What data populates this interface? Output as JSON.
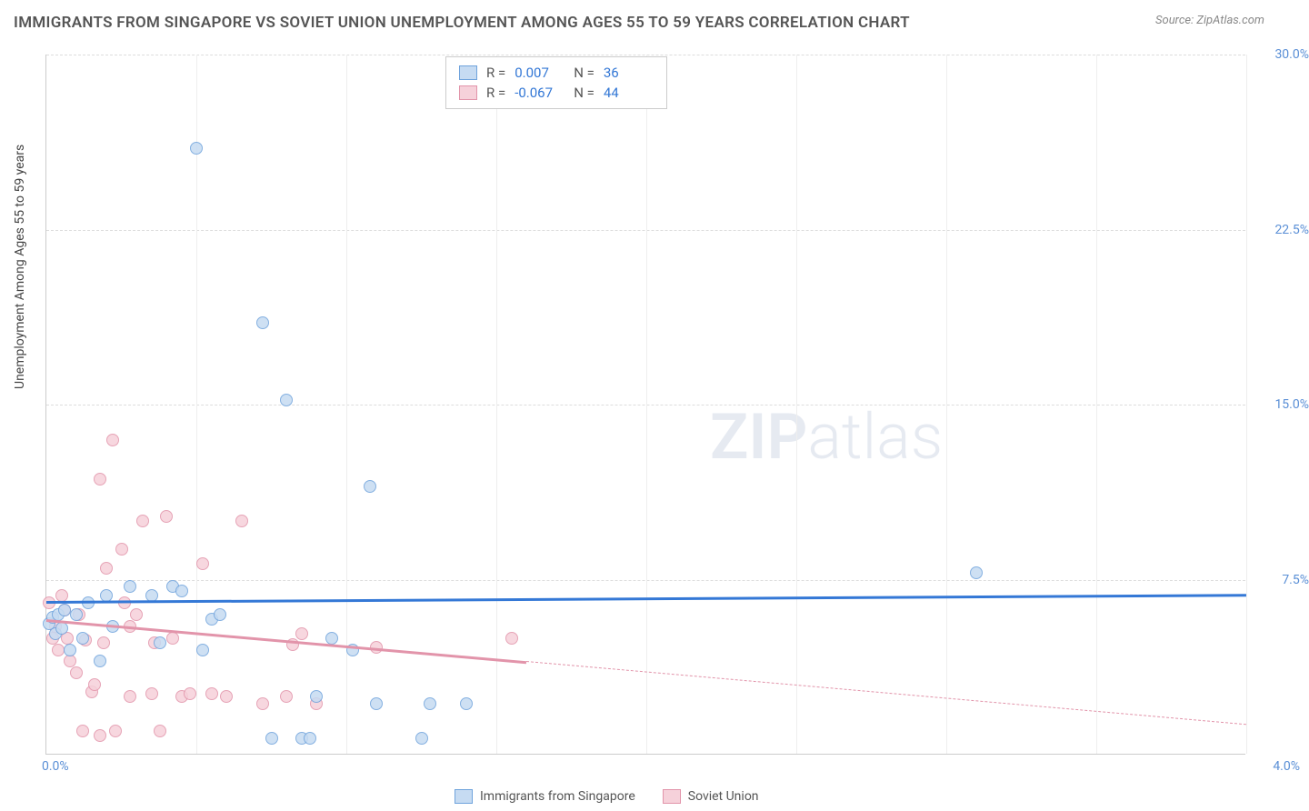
{
  "title": "IMMIGRANTS FROM SINGAPORE VS SOVIET UNION UNEMPLOYMENT AMONG AGES 55 TO 59 YEARS CORRELATION CHART",
  "source": "Source: ZipAtlas.com",
  "y_axis_label": "Unemployment Among Ages 55 to 59 years",
  "watermark_bold": "ZIP",
  "watermark_light": "atlas",
  "chart": {
    "type": "scatter",
    "x_range": [
      0.0,
      4.0
    ],
    "y_range": [
      0.0,
      30.0
    ],
    "y_ticks": [
      7.5,
      15.0,
      22.5,
      30.0
    ],
    "y_tick_labels": [
      "7.5%",
      "15.0%",
      "22.5%",
      "30.0%"
    ],
    "x_ticks": [
      0.0,
      4.0
    ],
    "x_tick_positions": [
      0.0,
      0.5,
      1.0,
      1.5,
      2.0,
      2.5,
      3.0,
      3.5,
      4.0
    ],
    "x_tick_labels": [
      "0.0%",
      "4.0%"
    ],
    "background_color": "#ffffff",
    "grid_color": "#dddddd",
    "marker_radius": 7,
    "series": [
      {
        "name": "Immigrants from Singapore",
        "fill": "#c6dbf2",
        "stroke": "#6fa3dc",
        "r_value": "0.007",
        "n_value": "36",
        "trend": {
          "color": "#3478d6",
          "y_start": 6.6,
          "y_end": 6.9,
          "x_start": 0.0,
          "x_end": 4.0,
          "solid_frac": 1.0
        },
        "points": [
          [
            0.01,
            5.6
          ],
          [
            0.02,
            5.9
          ],
          [
            0.03,
            5.2
          ],
          [
            0.04,
            6.0
          ],
          [
            0.05,
            5.4
          ],
          [
            0.06,
            6.2
          ],
          [
            0.08,
            4.5
          ],
          [
            0.1,
            6.0
          ],
          [
            0.12,
            5.0
          ],
          [
            0.14,
            6.5
          ],
          [
            0.18,
            4.0
          ],
          [
            0.2,
            6.8
          ],
          [
            0.22,
            5.5
          ],
          [
            0.28,
            7.2
          ],
          [
            0.35,
            6.8
          ],
          [
            0.38,
            4.8
          ],
          [
            0.42,
            7.2
          ],
          [
            0.45,
            7.0
          ],
          [
            0.5,
            26.0
          ],
          [
            0.52,
            4.5
          ],
          [
            0.55,
            5.8
          ],
          [
            0.58,
            6.0
          ],
          [
            0.72,
            18.5
          ],
          [
            0.75,
            0.7
          ],
          [
            0.8,
            15.2
          ],
          [
            0.85,
            0.7
          ],
          [
            0.88,
            0.7
          ],
          [
            0.9,
            2.5
          ],
          [
            0.95,
            5.0
          ],
          [
            1.02,
            4.5
          ],
          [
            1.08,
            11.5
          ],
          [
            1.1,
            2.2
          ],
          [
            1.25,
            0.7
          ],
          [
            1.28,
            2.2
          ],
          [
            1.4,
            2.2
          ],
          [
            3.1,
            7.8
          ]
        ]
      },
      {
        "name": "Soviet Union",
        "fill": "#f6d1da",
        "stroke": "#e294aa",
        "r_value": "-0.067",
        "n_value": "44",
        "trend": {
          "color": "#e294aa",
          "y_start": 5.8,
          "y_end": 1.3,
          "x_start": 0.0,
          "x_end": 4.0,
          "solid_frac": 0.4
        },
        "points": [
          [
            0.01,
            6.5
          ],
          [
            0.02,
            5.0
          ],
          [
            0.03,
            5.5
          ],
          [
            0.04,
            4.5
          ],
          [
            0.05,
            6.8
          ],
          [
            0.06,
            6.2
          ],
          [
            0.07,
            5.0
          ],
          [
            0.08,
            4.0
          ],
          [
            0.1,
            3.5
          ],
          [
            0.11,
            6.0
          ],
          [
            0.12,
            1.0
          ],
          [
            0.13,
            4.9
          ],
          [
            0.15,
            2.7
          ],
          [
            0.16,
            3.0
          ],
          [
            0.18,
            0.8
          ],
          [
            0.18,
            11.8
          ],
          [
            0.19,
            4.8
          ],
          [
            0.2,
            8.0
          ],
          [
            0.22,
            13.5
          ],
          [
            0.23,
            1.0
          ],
          [
            0.25,
            8.8
          ],
          [
            0.26,
            6.5
          ],
          [
            0.28,
            2.5
          ],
          [
            0.28,
            5.5
          ],
          [
            0.3,
            6.0
          ],
          [
            0.32,
            10.0
          ],
          [
            0.35,
            2.6
          ],
          [
            0.36,
            4.8
          ],
          [
            0.38,
            1.0
          ],
          [
            0.4,
            10.2
          ],
          [
            0.42,
            5.0
          ],
          [
            0.45,
            2.5
          ],
          [
            0.48,
            2.6
          ],
          [
            0.52,
            8.2
          ],
          [
            0.55,
            2.6
          ],
          [
            0.6,
            2.5
          ],
          [
            0.65,
            10.0
          ],
          [
            0.72,
            2.2
          ],
          [
            0.8,
            2.5
          ],
          [
            0.82,
            4.7
          ],
          [
            0.85,
            5.2
          ],
          [
            0.9,
            2.2
          ],
          [
            1.1,
            4.6
          ],
          [
            1.55,
            5.0
          ]
        ]
      }
    ],
    "legend_stats_labels": {
      "r": "R =",
      "n": "N ="
    }
  }
}
